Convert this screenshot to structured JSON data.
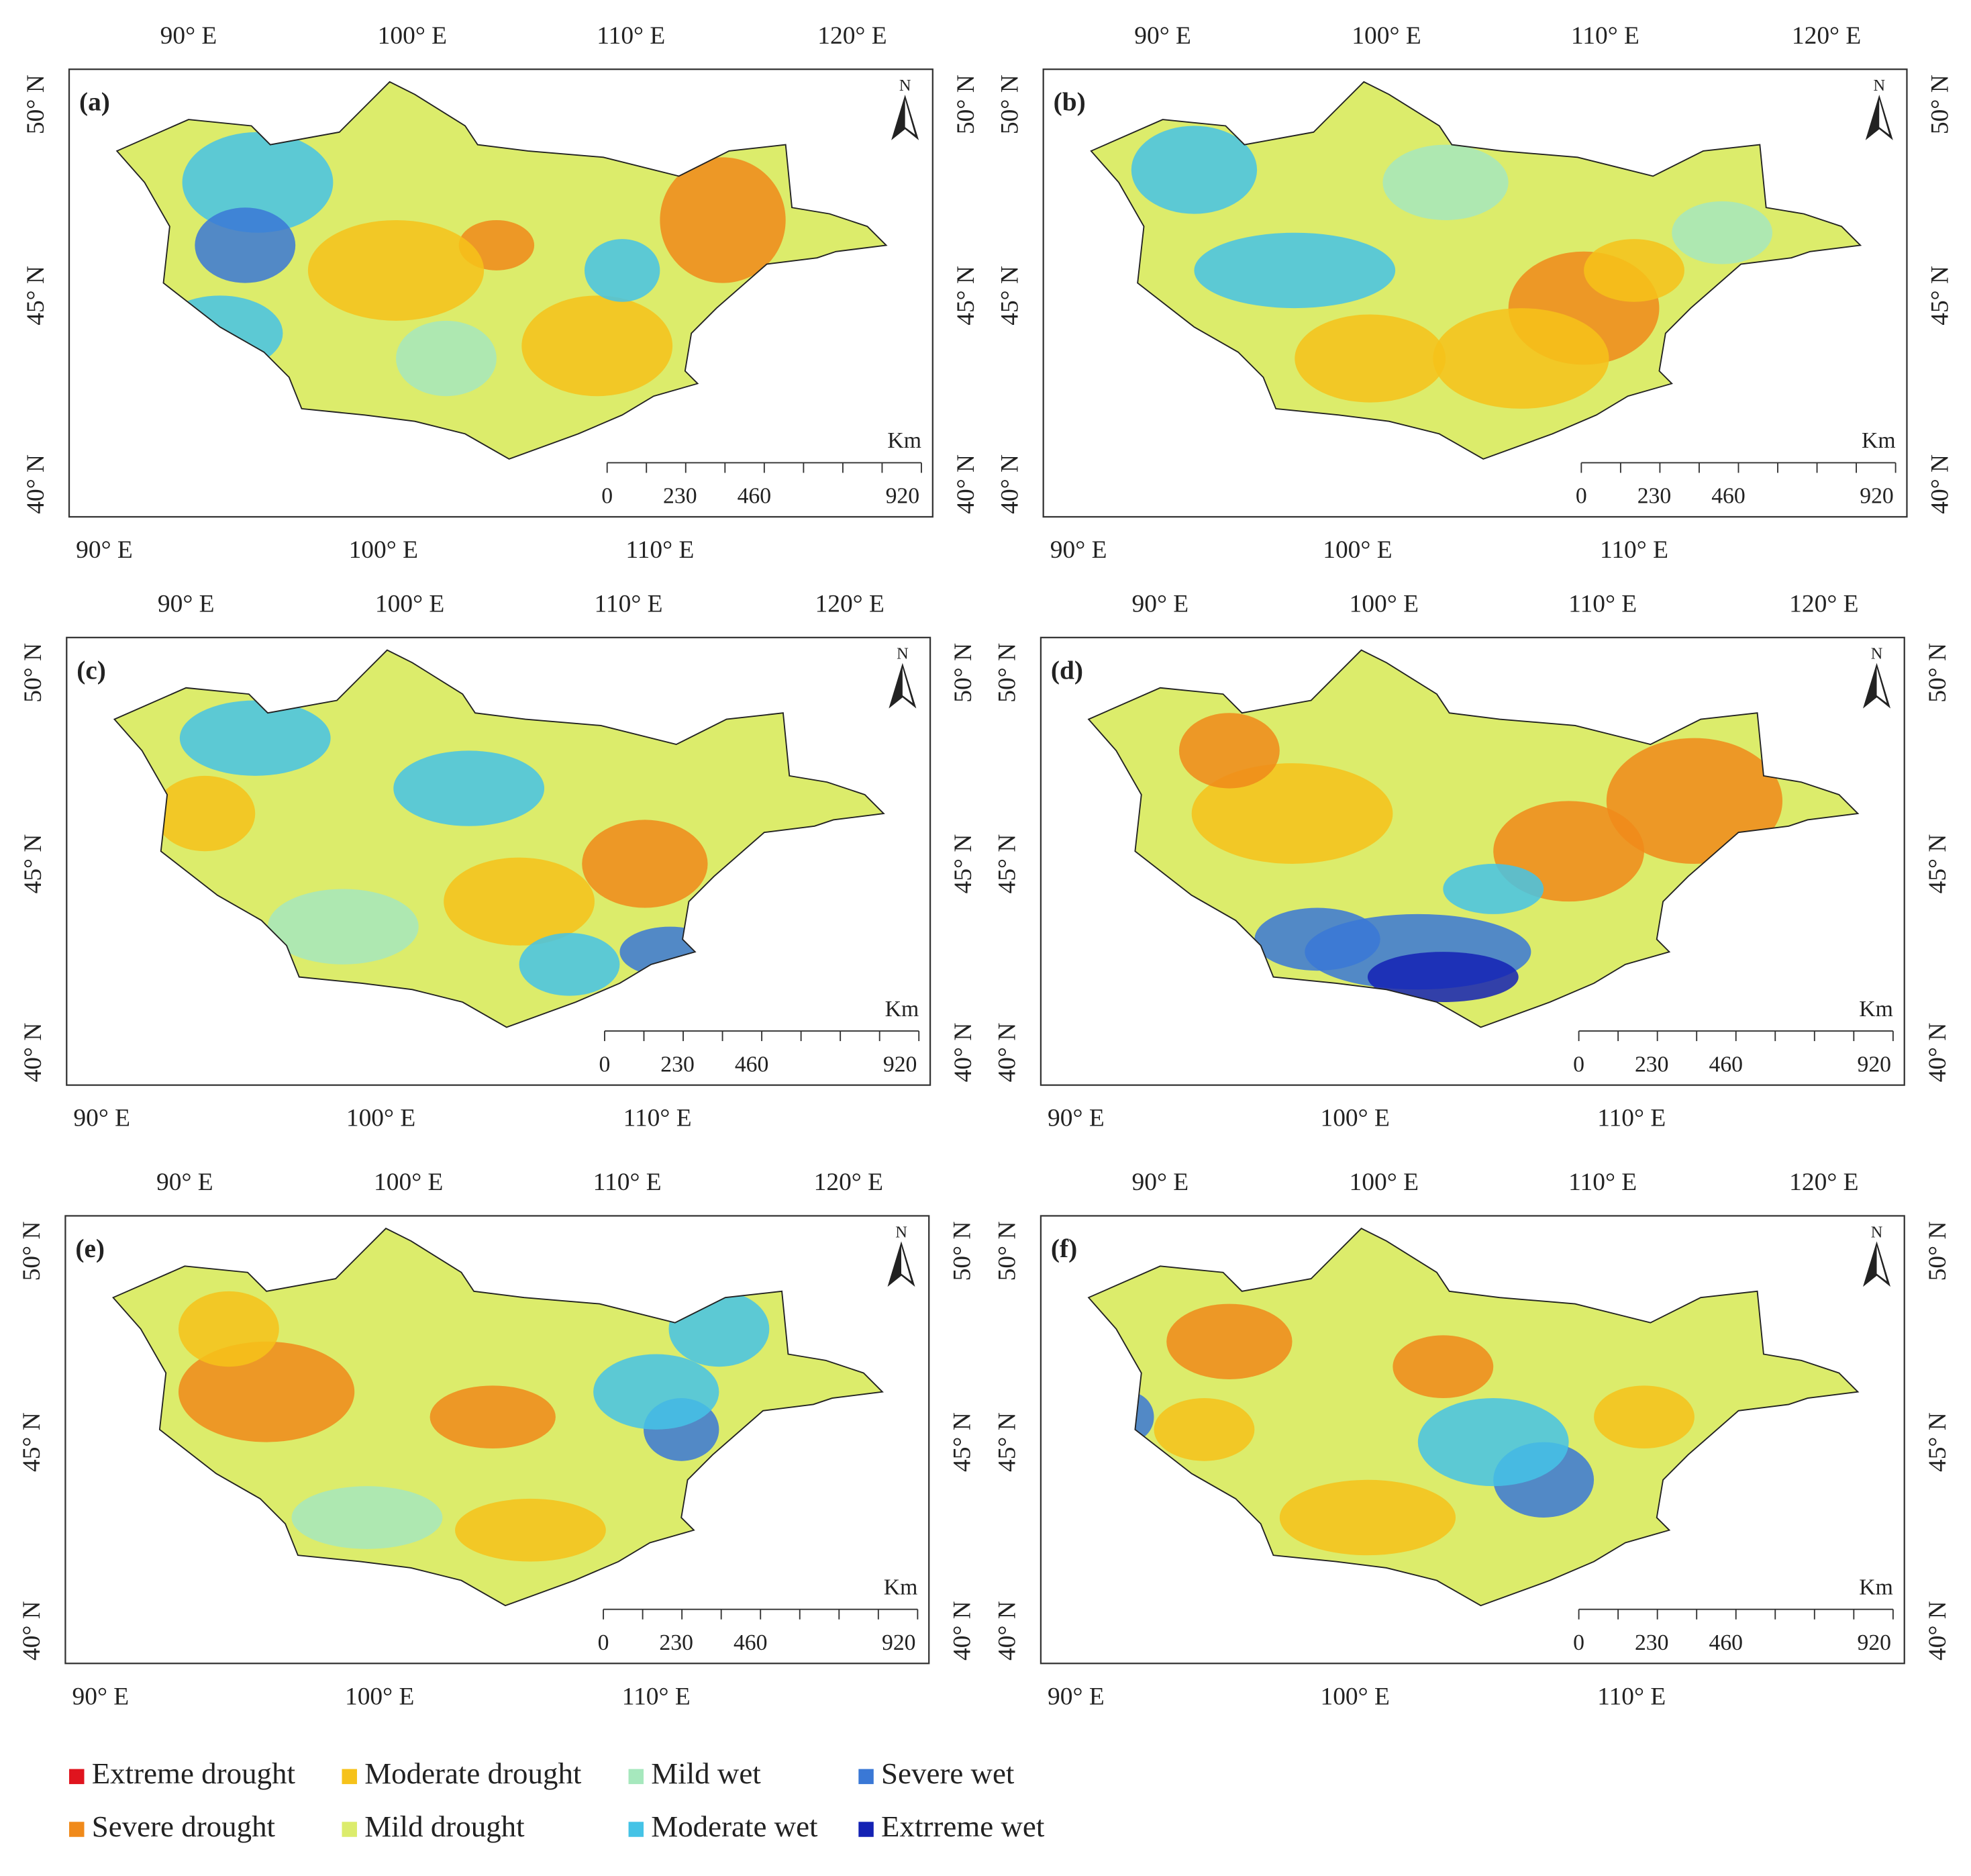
{
  "panels": [
    {
      "label": "(a)",
      "top_lon_labels": [
        "90° E",
        "100° E",
        "110° E",
        "120° E"
      ],
      "bottom_lon_labels": [
        "90° E",
        "100° E",
        "110° E"
      ],
      "left_lat_labels": [
        "50° N",
        "45° N",
        "40° N"
      ],
      "right_lat_labels": [
        "50° N",
        "45° N",
        "40° N"
      ],
      "north": "N",
      "scale_unit": "Km",
      "scale_labels": [
        "0",
        "230",
        "460",
        "920"
      ]
    },
    {
      "label": "(b)",
      "top_lon_labels": [
        "90° E",
        "100° E",
        "110° E",
        "120° E"
      ],
      "bottom_lon_labels": [
        "90° E",
        "100° E",
        "110° E"
      ],
      "left_lat_labels": [
        "50° N",
        "45° N",
        "40° N"
      ],
      "right_lat_labels": [
        "50° N",
        "45° N",
        "40° N"
      ],
      "north": "N",
      "scale_unit": "Km",
      "scale_labels": [
        "0",
        "230",
        "460",
        "920"
      ]
    },
    {
      "label": "(c)",
      "top_lon_labels": [
        "90° E",
        "100° E",
        "110° E",
        "120° E"
      ],
      "bottom_lon_labels": [
        "90° E",
        "100° E",
        "110° E"
      ],
      "left_lat_labels": [
        "50° N",
        "45° N",
        "40° N"
      ],
      "right_lat_labels": [
        "50° N",
        "45° N",
        "40° N"
      ],
      "north": "N",
      "scale_unit": "Km",
      "scale_labels": [
        "0",
        "230",
        "460",
        "920"
      ]
    },
    {
      "label": "(d)",
      "top_lon_labels": [
        "90° E",
        "100° E",
        "110° E",
        "120° E"
      ],
      "bottom_lon_labels": [
        "90° E",
        "100° E",
        "110° E"
      ],
      "left_lat_labels": [
        "50° N",
        "45° N",
        "40° N"
      ],
      "right_lat_labels": [
        "50° N",
        "45° N",
        "40° N"
      ],
      "north": "N",
      "scale_unit": "Km",
      "scale_labels": [
        "0",
        "230",
        "460",
        "920"
      ]
    },
    {
      "label": "(e)",
      "top_lon_labels": [
        "90° E",
        "100° E",
        "110° E",
        "120° E"
      ],
      "bottom_lon_labels": [
        "90° E",
        "100° E",
        "110° E"
      ],
      "left_lat_labels": [
        "50° N",
        "45° N",
        "40° N"
      ],
      "right_lat_labels": [
        "50° N",
        "45° N",
        "40° N"
      ],
      "north": "N",
      "scale_unit": "Km",
      "scale_labels": [
        "0",
        "230",
        "460",
        "920"
      ]
    },
    {
      "label": "(f)",
      "top_lon_labels": [
        "90° E",
        "100° E",
        "110° E",
        "120° E"
      ],
      "bottom_lon_labels": [
        "90° E",
        "100° E",
        "110° E"
      ],
      "left_lat_labels": [
        "50° N",
        "45° N",
        "40° N"
      ],
      "right_lat_labels": [
        "50° N",
        "45° N",
        "40° N"
      ],
      "north": "N",
      "scale_unit": "Km",
      "scale_labels": [
        "0",
        "230",
        "460",
        "920"
      ]
    }
  ],
  "legend": [
    {
      "label": "Extreme drought",
      "color": "#e0141e"
    },
    {
      "label": "Moderate drought",
      "color": "#f6c21a"
    },
    {
      "label": "Mild wet",
      "color": "#a6e8bd"
    },
    {
      "label": "Severe wet",
      "color": "#3a78d6"
    },
    {
      "label": "Severe drought",
      "color": "#f08a1a"
    },
    {
      "label": "Mild drought",
      "color": "#dcec6c"
    },
    {
      "label": "Moderate wet",
      "color": "#45c3e6"
    },
    {
      "label": "Extrreme wet",
      "color": "#1422b4"
    }
  ]
}
